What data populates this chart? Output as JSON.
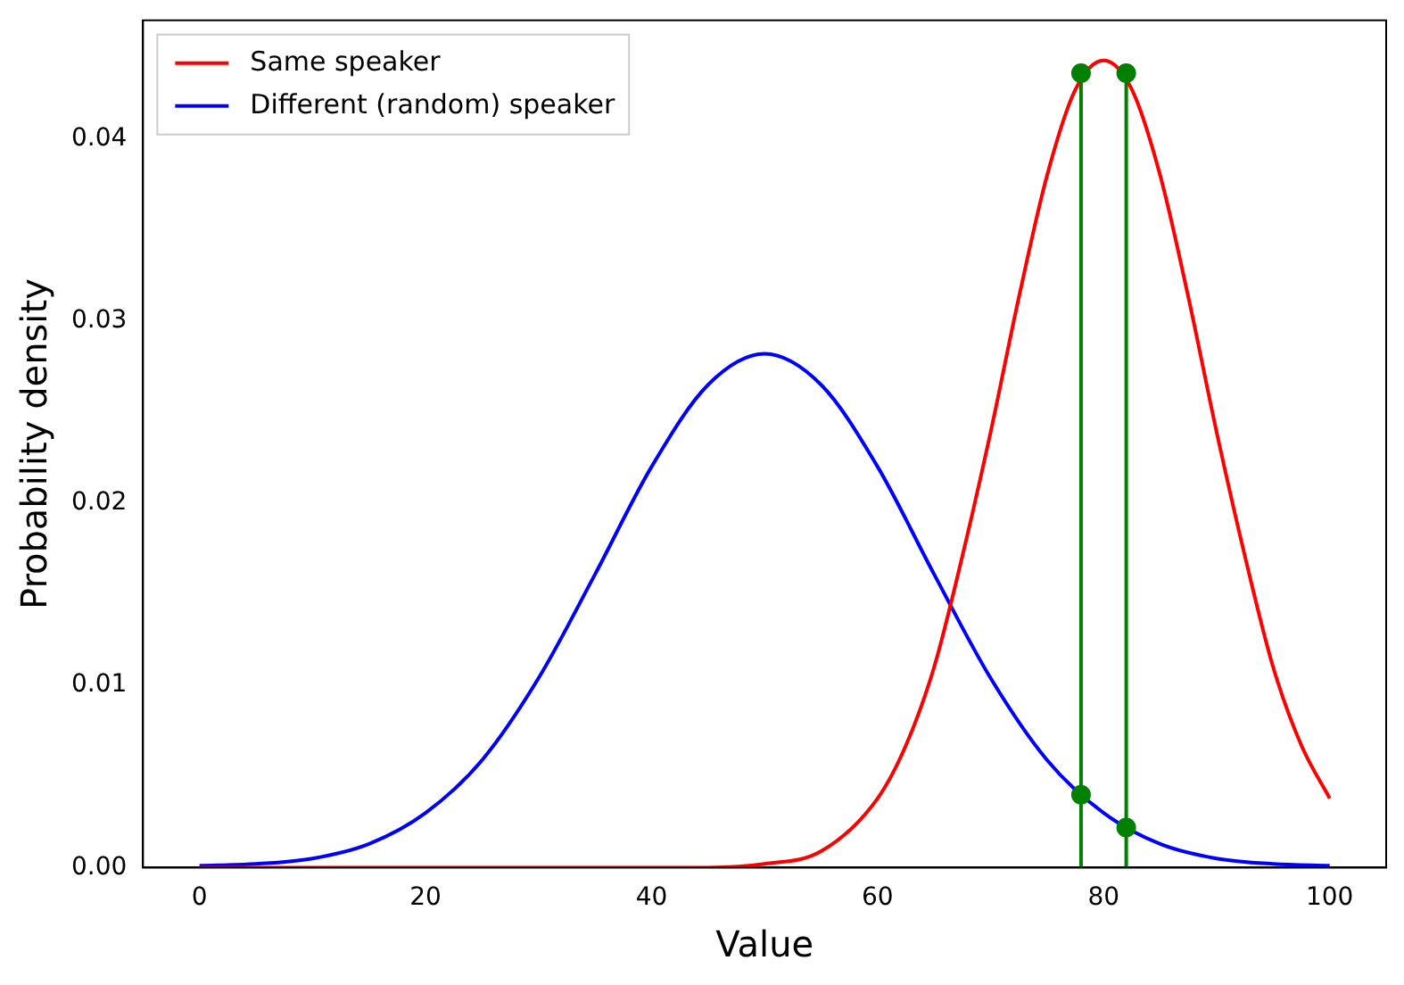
{
  "chart_data": {
    "type": "line",
    "xlabel": "Value",
    "ylabel": "Probability density",
    "xlim": [
      -5,
      105
    ],
    "xticks": [
      0,
      20,
      40,
      60,
      80,
      100
    ],
    "ylim": [
      0,
      0.0465
    ],
    "yticks": [
      {
        "value": 0,
        "label": "0.00"
      },
      {
        "value": 0.01,
        "label": "0.01"
      },
      {
        "value": 0.02,
        "label": "0.02"
      },
      {
        "value": 0.03,
        "label": "0.03"
      },
      {
        "value": 0.04,
        "label": "0.04"
      }
    ],
    "legend": "top left",
    "grid": false,
    "marker": "none",
    "series": [
      {
        "name": "Same speaker",
        "color": "#ff0000",
        "type": "line",
        "x": [
          0,
          10,
          20,
          30,
          40,
          45,
          50,
          55,
          60,
          62.5,
          65,
          67.5,
          70,
          72.5,
          75,
          77.5,
          80,
          82.5,
          85,
          87.5,
          90,
          92.5,
          95,
          97.5,
          100
        ],
        "values": [
          0,
          0,
          0,
          0,
          0,
          0,
          0.0002,
          0.0009,
          0.0038,
          0.0067,
          0.011,
          0.0171,
          0.0239,
          0.0313,
          0.038,
          0.0427,
          0.0443,
          0.0427,
          0.038,
          0.0313,
          0.0239,
          0.0171,
          0.011,
          0.0067,
          0.0038
        ]
      },
      {
        "name": "Different (random) speaker",
        "color": "#0000ff",
        "type": "line",
        "x": [
          0,
          5,
          10,
          15,
          20,
          25,
          30,
          35,
          40,
          45,
          50,
          55,
          60,
          65,
          70,
          75,
          80,
          85,
          90,
          95,
          100
        ],
        "values": [
          0.0001,
          0.0002,
          0.0005,
          0.0013,
          0.003,
          0.0059,
          0.0104,
          0.0161,
          0.022,
          0.0265,
          0.0282,
          0.0265,
          0.022,
          0.0161,
          0.0104,
          0.0059,
          0.003,
          0.0013,
          0.0005,
          0.0002,
          0.0001
        ]
      },
      {
        "color": "#008000",
        "type": "line",
        "x": [
          78,
          78
        ],
        "values": [
          0,
          0.0436
        ]
      },
      {
        "color": "#008000",
        "type": "line",
        "x": [
          82,
          82
        ],
        "values": [
          0,
          0.0436
        ]
      },
      {
        "color": "#008000",
        "type": "scatter",
        "marker": "circle",
        "x": [
          78,
          82,
          78,
          82
        ],
        "values": [
          0.0436,
          0.0436,
          0.004,
          0.0022
        ]
      }
    ]
  }
}
